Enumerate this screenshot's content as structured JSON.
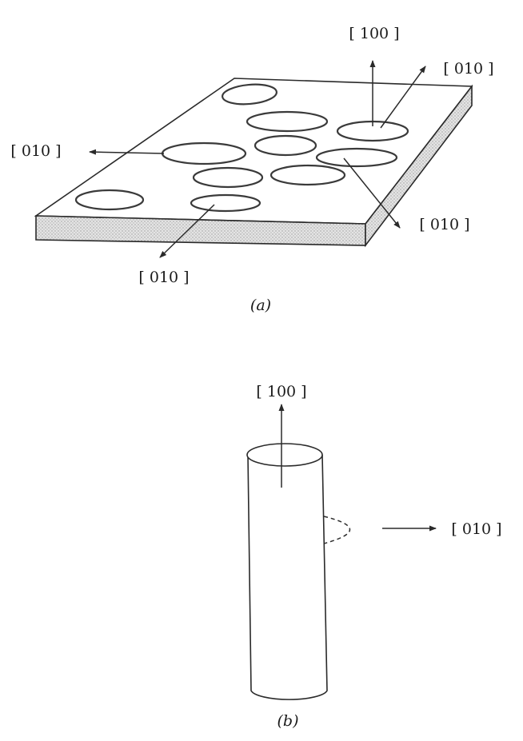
{
  "panel_a": {
    "caption": "(a)",
    "labels": {
      "normal_up": "[ 100 ]",
      "upper_right": "[ 010 ]",
      "left": "[ 010 ]",
      "right_lower": "[ 010 ]",
      "front": "[ 010 ]"
    }
  },
  "panel_b": {
    "caption": "(b)",
    "labels": {
      "axis_up": "[ 100 ]",
      "side": "[ 010 ]"
    }
  },
  "colors": {
    "line": "#2a2a2a",
    "shade": "#d9d9d9"
  }
}
